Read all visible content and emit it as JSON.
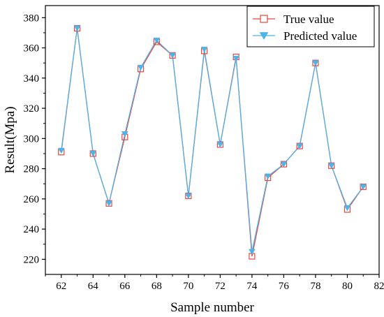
{
  "chart_data": {
    "type": "line",
    "xlabel": "Sample number",
    "ylabel": "Result(Mpa)",
    "xlim": [
      61,
      82
    ],
    "ylim": [
      210,
      388
    ],
    "x_ticks": [
      62,
      64,
      66,
      68,
      70,
      72,
      74,
      76,
      78,
      80,
      82
    ],
    "y_ticks": [
      220,
      240,
      260,
      280,
      300,
      320,
      340,
      360,
      380
    ],
    "x": [
      62,
      63,
      64,
      65,
      66,
      67,
      68,
      69,
      70,
      71,
      72,
      73,
      74,
      75,
      76,
      77,
      78,
      79,
      80,
      81
    ],
    "series": [
      {
        "name": "True value",
        "color": "#e8463a",
        "marker": "open-square",
        "values": [
          291,
          373,
          290,
          257,
          301,
          346,
          364,
          355,
          262,
          358,
          296,
          354,
          222,
          274,
          283,
          295,
          350,
          282,
          253,
          268
        ]
      },
      {
        "name": "Predicted value",
        "color": "#4fb3e8",
        "marker": "filled-triangle-down",
        "values": [
          292,
          373,
          290,
          257,
          303,
          347,
          365,
          355,
          262,
          359,
          296,
          353,
          225,
          275,
          283,
          295,
          350,
          282,
          254,
          268
        ]
      }
    ],
    "legend_position": "top-right",
    "grid": false
  }
}
